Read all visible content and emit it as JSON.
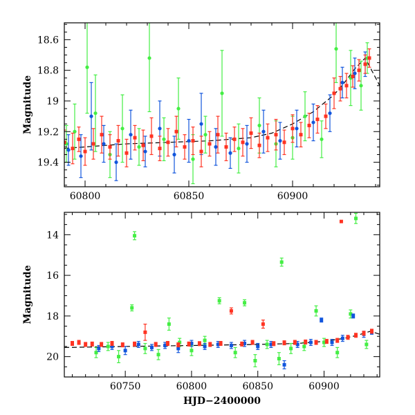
{
  "colors": {
    "green": "#44ee44",
    "blue": "#1155dd",
    "red": "#ff3322",
    "model": "#000000"
  },
  "chart_data": [
    {
      "type": "scatter",
      "panel": "top",
      "title": "",
      "xlabel": "",
      "ylabel": "Magnitude",
      "xlim": [
        60790,
        60942
      ],
      "ylim": [
        19.56,
        18.49
      ],
      "y_inverted": true,
      "x_ticks": [
        60800,
        60850,
        60900
      ],
      "x_tick_labels": [
        "60800",
        "60850",
        "60900"
      ],
      "y_ticks": [
        18.6,
        18.8,
        19.0,
        19.2,
        19.4
      ],
      "y_tick_labels": [
        "18.6",
        "18.8",
        "19",
        "19.2",
        "19.4"
      ],
      "model_curve": {
        "x": [
          60790,
          60800,
          60820,
          60840,
          60860,
          60880,
          60890,
          60900,
          60910,
          60920,
          60925,
          60930,
          60935,
          60942
        ],
        "y": [
          19.31,
          19.3,
          19.28,
          19.27,
          19.26,
          19.24,
          19.21,
          19.15,
          19.07,
          18.96,
          18.88,
          18.79,
          18.72,
          18.9
        ]
      },
      "series": [
        {
          "name": "",
          "color_key": "green",
          "x": [
            60791,
            60795,
            60801,
            60805,
            60812,
            60818,
            60826,
            60831,
            60838,
            60845,
            60852,
            60858,
            60866,
            60874,
            60884,
            60892,
            60900,
            60906,
            60914,
            60921,
            60928,
            60933,
            60936
          ],
          "y": [
            19.28,
            19.2,
            18.78,
            19.08,
            19.35,
            19.18,
            19.3,
            18.72,
            19.25,
            19.05,
            19.38,
            19.22,
            18.95,
            19.31,
            19.16,
            19.28,
            19.24,
            19.1,
            19.25,
            18.66,
            18.85,
            18.9,
            18.72
          ],
          "err": [
            0.12,
            0.18,
            0.3,
            0.25,
            0.15,
            0.22,
            0.12,
            0.35,
            0.14,
            0.2,
            0.16,
            0.12,
            0.28,
            0.16,
            0.18,
            0.15,
            0.14,
            0.16,
            0.12,
            0.22,
            0.18,
            0.16,
            0.1
          ]
        },
        {
          "name": "",
          "color_key": "blue",
          "x": [
            60792,
            60798,
            60803,
            60809,
            60815,
            60822,
            60829,
            60836,
            60843,
            60850,
            60856,
            60863,
            60870,
            60878,
            60886,
            60894,
            60902,
            60910,
            60918,
            60924,
            60930,
            60935
          ],
          "y": [
            19.32,
            19.36,
            19.1,
            19.28,
            19.4,
            19.22,
            19.33,
            19.18,
            19.35,
            19.26,
            19.15,
            19.3,
            19.34,
            19.28,
            19.2,
            19.26,
            19.18,
            19.14,
            19.08,
            18.88,
            18.82,
            18.76
          ],
          "err": [
            0.1,
            0.14,
            0.22,
            0.12,
            0.12,
            0.16,
            0.1,
            0.18,
            0.12,
            0.14,
            0.2,
            0.12,
            0.1,
            0.12,
            0.14,
            0.12,
            0.12,
            0.12,
            0.12,
            0.1,
            0.1,
            0.08
          ]
        },
        {
          "name": "",
          "color_key": "red",
          "x": [
            60790,
            60794,
            60797,
            60800,
            60804,
            60808,
            60812,
            60816,
            60820,
            60824,
            60828,
            60832,
            60836,
            60840,
            60844,
            60848,
            60852,
            60856,
            60860,
            60864,
            60868,
            60872,
            60876,
            60880,
            60884,
            60888,
            60892,
            60896,
            60900,
            60904,
            60908,
            60912,
            60916,
            60920,
            60923,
            60926,
            60929,
            60932,
            60935,
            60937
          ],
          "y": [
            19.27,
            19.31,
            19.25,
            19.33,
            19.28,
            19.22,
            19.3,
            19.26,
            19.34,
            19.24,
            19.29,
            19.23,
            19.31,
            19.27,
            19.2,
            19.3,
            19.26,
            19.33,
            19.28,
            19.22,
            19.3,
            19.25,
            19.27,
            19.21,
            19.29,
            19.24,
            19.22,
            19.27,
            19.18,
            19.22,
            19.16,
            19.12,
            19.1,
            18.95,
            18.92,
            18.9,
            18.84,
            18.8,
            18.76,
            18.72
          ],
          "err": [
            0.08,
            0.1,
            0.08,
            0.09,
            0.1,
            0.12,
            0.08,
            0.1,
            0.09,
            0.08,
            0.1,
            0.12,
            0.08,
            0.09,
            0.1,
            0.08,
            0.09,
            0.1,
            0.08,
            0.12,
            0.09,
            0.08,
            0.09,
            0.1,
            0.08,
            0.09,
            0.1,
            0.08,
            0.09,
            0.08,
            0.08,
            0.09,
            0.08,
            0.1,
            0.08,
            0.08,
            0.07,
            0.07,
            0.06,
            0.06
          ]
        }
      ]
    },
    {
      "type": "scatter",
      "panel": "bottom",
      "title": "",
      "xlabel": "HJD−2400000",
      "ylabel": "Magnitude",
      "xlim": [
        60704,
        60942
      ],
      "ylim": [
        21.0,
        12.9
      ],
      "y_inverted": true,
      "x_ticks": [
        60750,
        60800,
        60850,
        60900
      ],
      "x_tick_labels": [
        "60750",
        "60800",
        "60850",
        "60900"
      ],
      "y_ticks": [
        14,
        16,
        18,
        20
      ],
      "y_tick_labels": [
        "14",
        "16",
        "18",
        "20"
      ],
      "model_curve": {
        "x": [
          60704,
          60750,
          60800,
          60850,
          60880,
          60900,
          60915,
          60925,
          60935,
          60942
        ],
        "y": [
          19.55,
          19.5,
          19.45,
          19.4,
          19.35,
          19.25,
          19.1,
          18.95,
          18.75,
          18.9
        ]
      },
      "series": [
        {
          "name": "",
          "color_key": "green",
          "x": [
            60728,
            60737,
            60745,
            60755,
            60757,
            60765,
            60775,
            60783,
            60791,
            60800,
            60810,
            60821,
            60833,
            60840,
            60848,
            60857,
            60866,
            60868,
            60875,
            60885,
            60894,
            60900,
            60910,
            60920,
            60924,
            60932
          ],
          "y": [
            19.8,
            19.5,
            20.0,
            17.6,
            14.05,
            19.6,
            19.9,
            18.4,
            19.3,
            19.7,
            19.2,
            17.25,
            19.8,
            17.35,
            20.2,
            19.4,
            20.1,
            15.35,
            19.6,
            19.5,
            17.75,
            19.3,
            19.8,
            17.9,
            13.2,
            19.4
          ],
          "err": [
            0.25,
            0.2,
            0.3,
            0.15,
            0.2,
            0.25,
            0.25,
            0.3,
            0.2,
            0.25,
            0.2,
            0.15,
            0.25,
            0.15,
            0.3,
            0.2,
            0.3,
            0.2,
            0.25,
            0.2,
            0.25,
            0.2,
            0.25,
            0.2,
            0.25,
            0.2
          ]
        },
        {
          "name": "",
          "color_key": "blue",
          "x": [
            60730,
            60740,
            60750,
            60760,
            60770,
            60780,
            60790,
            60800,
            60810,
            60820,
            60830,
            60840,
            60850,
            60860,
            60870,
            60880,
            60890,
            60898,
            60906,
            60914,
            60922,
            60930,
            60936
          ],
          "y": [
            19.6,
            19.5,
            19.7,
            19.4,
            19.55,
            19.45,
            19.6,
            19.35,
            19.5,
            19.4,
            19.45,
            19.35,
            19.5,
            19.4,
            20.4,
            19.4,
            19.3,
            18.2,
            19.3,
            19.1,
            18.0,
            18.9,
            18.8
          ],
          "err": [
            0.15,
            0.15,
            0.2,
            0.15,
            0.15,
            0.15,
            0.2,
            0.15,
            0.15,
            0.15,
            0.15,
            0.15,
            0.15,
            0.15,
            0.2,
            0.15,
            0.15,
            0.1,
            0.15,
            0.15,
            0.1,
            0.15,
            0.1
          ]
        },
        {
          "name": "",
          "color_key": "red",
          "x": [
            60710,
            60715,
            60720,
            60725,
            60732,
            60740,
            60748,
            60757,
            60765,
            60773,
            60782,
            60790,
            60798,
            60806,
            60814,
            60822,
            60830,
            60838,
            60846,
            60854,
            60862,
            60870,
            60878,
            60886,
            60894,
            60902,
            60910,
            60913,
            60918,
            60924,
            60930,
            60936
          ],
          "y": [
            19.35,
            19.3,
            19.4,
            19.38,
            19.4,
            19.35,
            19.42,
            19.38,
            18.8,
            19.4,
            19.35,
            19.42,
            19.38,
            19.36,
            19.4,
            19.35,
            17.75,
            19.38,
            19.3,
            18.4,
            19.36,
            19.32,
            19.3,
            19.28,
            19.3,
            19.25,
            19.2,
            13.35,
            19.05,
            18.95,
            18.85,
            18.75
          ],
          "err": [
            0.1,
            0.1,
            0.1,
            0.1,
            0.1,
            0.1,
            0.1,
            0.1,
            0.4,
            0.1,
            0.1,
            0.1,
            0.1,
            0.1,
            0.1,
            0.1,
            0.15,
            0.1,
            0.1,
            0.2,
            0.1,
            0.1,
            0.1,
            0.1,
            0.1,
            0.1,
            0.1,
            0.0,
            0.1,
            0.1,
            0.1,
            0.1
          ]
        }
      ]
    }
  ]
}
